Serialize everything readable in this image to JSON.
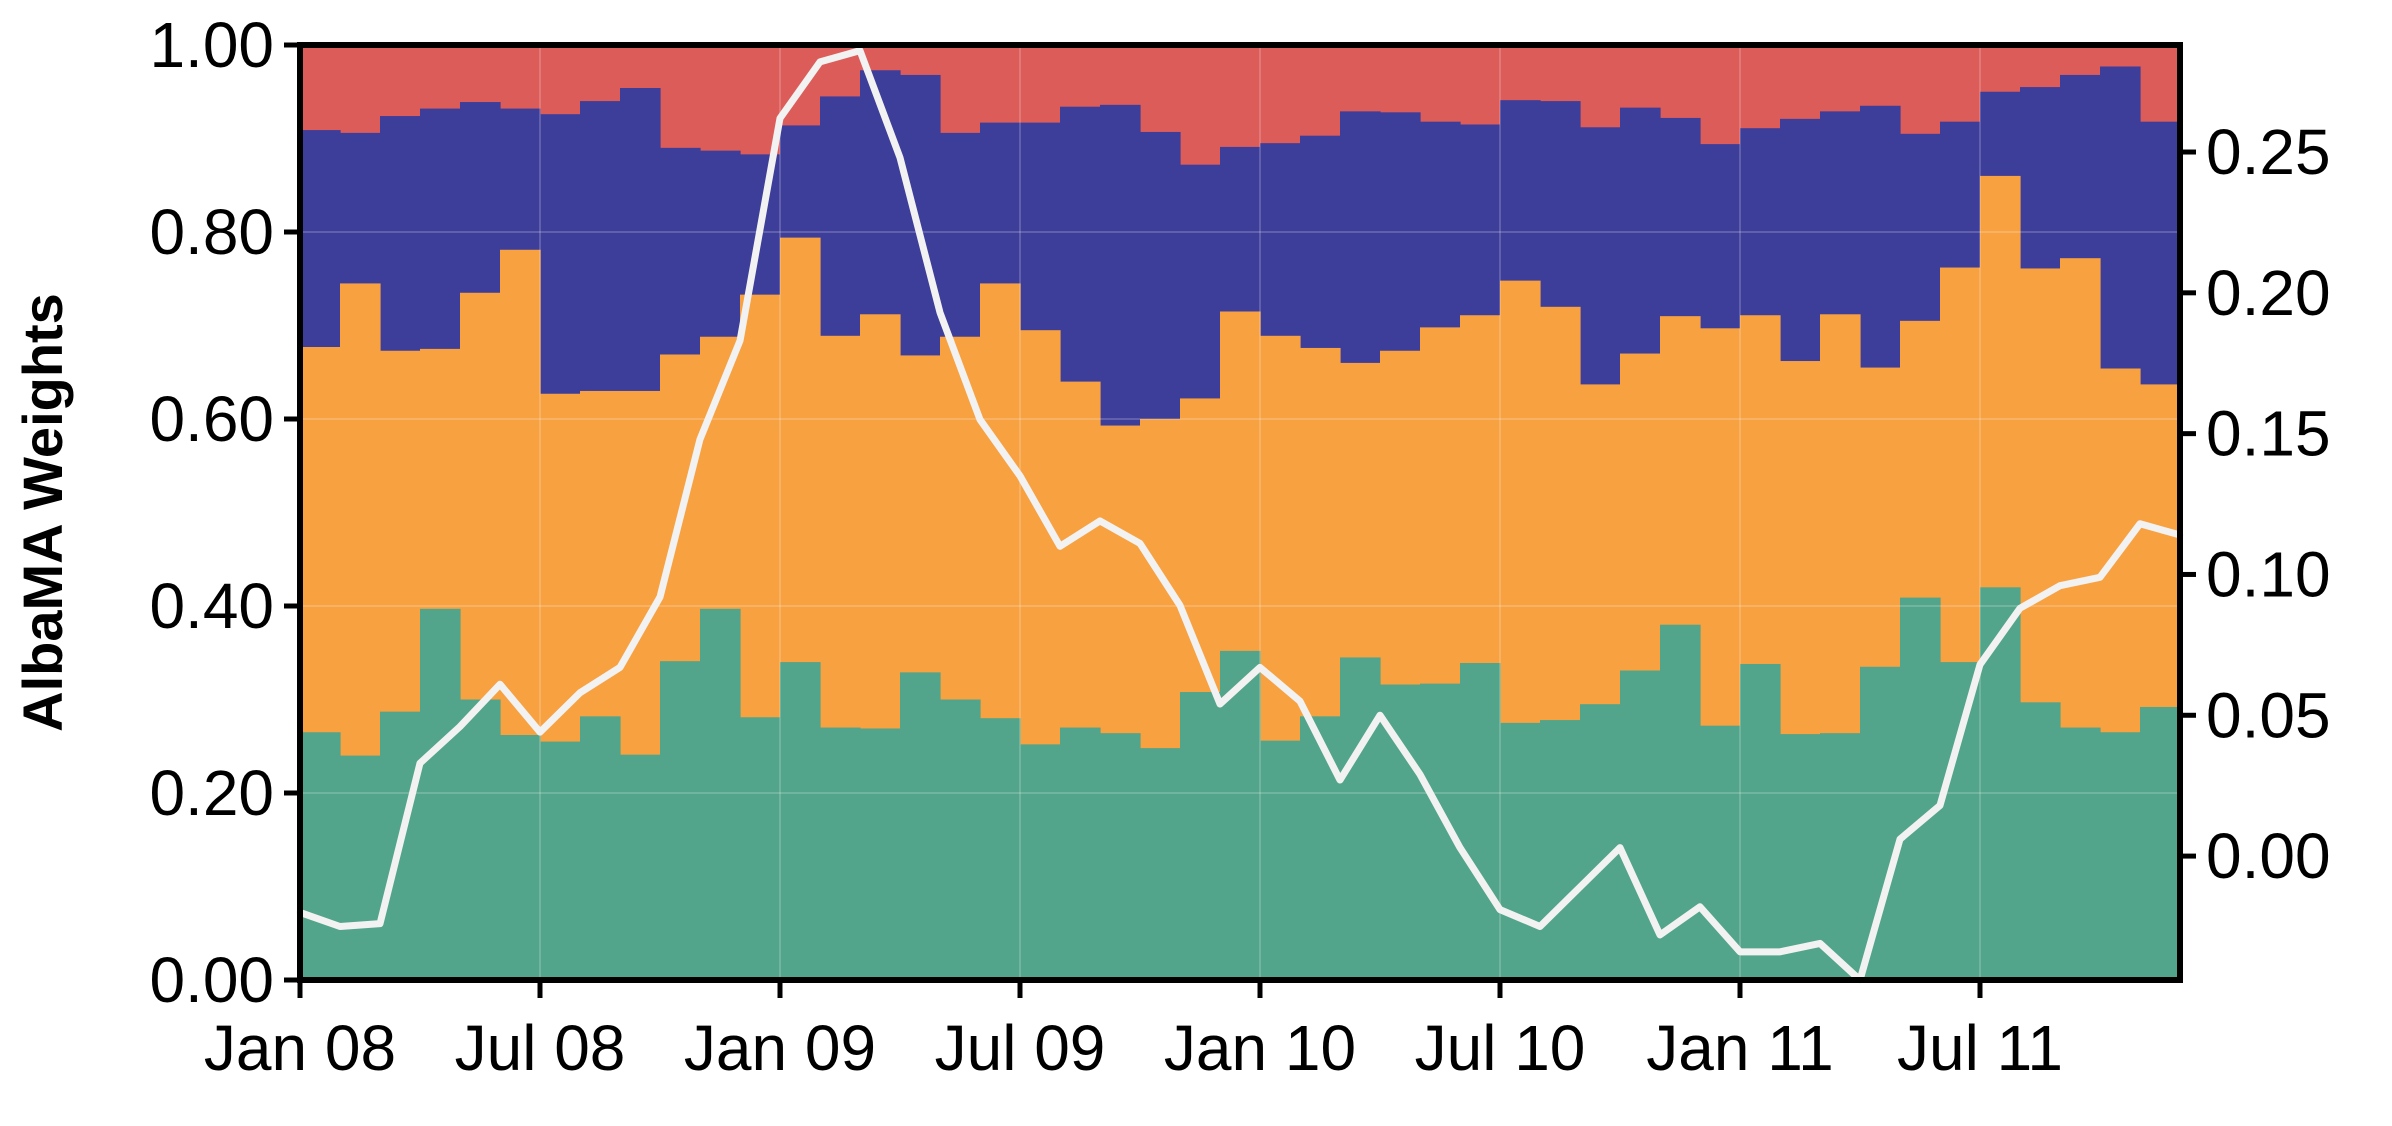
{
  "chart_data": {
    "type": "area",
    "subtype": "stacked-step-area with overlay line on secondary axis",
    "ylabel": "AlbaMA Weights",
    "ylim": [
      0,
      1
    ],
    "y_ticks": [
      "0.00",
      "0.20",
      "0.40",
      "0.60",
      "0.80",
      "1.00"
    ],
    "y2lim": [
      -0.044,
      0.288
    ],
    "y2_ticks": [
      "0.00",
      "0.05",
      "0.10",
      "0.15",
      "0.20",
      "0.25"
    ],
    "x_ticks": [
      "Jan 08",
      "Jul 08",
      "Jan 09",
      "Jul 09",
      "Jan 10",
      "Jul 10",
      "Jan 11",
      "Jul 11"
    ],
    "months": 47,
    "grid": true,
    "legend": "none",
    "colors": {
      "green": "#52a58a",
      "orange": "#f8a141",
      "navy": "#3d3d9a",
      "red": "#dc5c5a",
      "line": "#f2f2f2",
      "frame": "#000000"
    },
    "stack_series": [
      "green",
      "orange",
      "navy",
      "red"
    ],
    "cum_green": [
      0.265,
      0.24,
      0.287,
      0.397,
      0.3,
      0.262,
      0.255,
      0.282,
      0.241,
      0.341,
      0.397,
      0.281,
      0.34,
      0.27,
      0.269,
      0.329,
      0.3,
      0.28,
      0.252,
      0.27,
      0.264,
      0.248,
      0.308,
      0.352,
      0.256,
      0.282,
      0.345,
      0.316,
      0.317,
      0.339,
      0.275,
      0.278,
      0.295,
      0.331,
      0.38,
      0.272,
      0.338,
      0.263,
      0.264,
      0.335,
      0.409,
      0.34,
      0.42,
      0.297,
      0.27,
      0.265,
      0.292
    ],
    "cum_orange": [
      0.677,
      0.745,
      0.673,
      0.675,
      0.735,
      0.781,
      0.627,
      0.63,
      0.63,
      0.669,
      0.688,
      0.733,
      0.794,
      0.689,
      0.712,
      0.668,
      0.688,
      0.745,
      0.695,
      0.64,
      0.593,
      0.6,
      0.622,
      0.715,
      0.689,
      0.676,
      0.66,
      0.673,
      0.698,
      0.711,
      0.748,
      0.72,
      0.637,
      0.67,
      0.71,
      0.697,
      0.711,
      0.662,
      0.712,
      0.655,
      0.705,
      0.762,
      0.86,
      0.761,
      0.772,
      0.654,
      0.637
    ],
    "cum_navy": [
      0.909,
      0.906,
      0.924,
      0.932,
      0.939,
      0.932,
      0.926,
      0.94,
      0.954,
      0.89,
      0.887,
      0.883,
      0.914,
      0.945,
      0.973,
      0.968,
      0.906,
      0.917,
      0.917,
      0.934,
      0.936,
      0.907,
      0.872,
      0.891,
      0.895,
      0.903,
      0.929,
      0.928,
      0.918,
      0.915,
      0.941,
      0.94,
      0.912,
      0.933,
      0.922,
      0.894,
      0.911,
      0.921,
      0.929,
      0.935,
      0.905,
      0.918,
      0.95,
      0.955,
      0.968,
      0.977,
      0.918
    ],
    "cum_red": [
      1,
      1,
      1,
      1,
      1,
      1,
      1,
      1,
      1,
      1,
      1,
      1,
      1,
      1,
      1,
      1,
      1,
      1,
      1,
      1,
      1,
      1,
      1,
      1,
      1,
      1,
      1,
      1,
      1,
      1,
      1,
      1,
      1,
      1,
      1,
      1,
      1,
      1,
      1,
      1,
      1,
      1,
      1,
      1,
      1,
      1,
      1
    ],
    "line_values": [
      -0.02,
      -0.025,
      -0.024,
      0.033,
      0.046,
      0.061,
      0.044,
      0.058,
      0.067,
      0.092,
      0.148,
      0.183,
      0.262,
      0.282,
      0.286,
      0.248,
      0.193,
      0.155,
      0.135,
      0.11,
      0.119,
      0.111,
      0.089,
      0.054,
      0.067,
      0.055,
      0.027,
      0.05,
      0.029,
      0.003,
      -0.019,
      -0.025,
      -0.011,
      0.003,
      -0.028,
      -0.018,
      -0.034,
      -0.034,
      -0.031,
      -0.044,
      0.006,
      0.018,
      0.068,
      0.088,
      0.096,
      0.099,
      0.118,
      0.114
    ]
  }
}
